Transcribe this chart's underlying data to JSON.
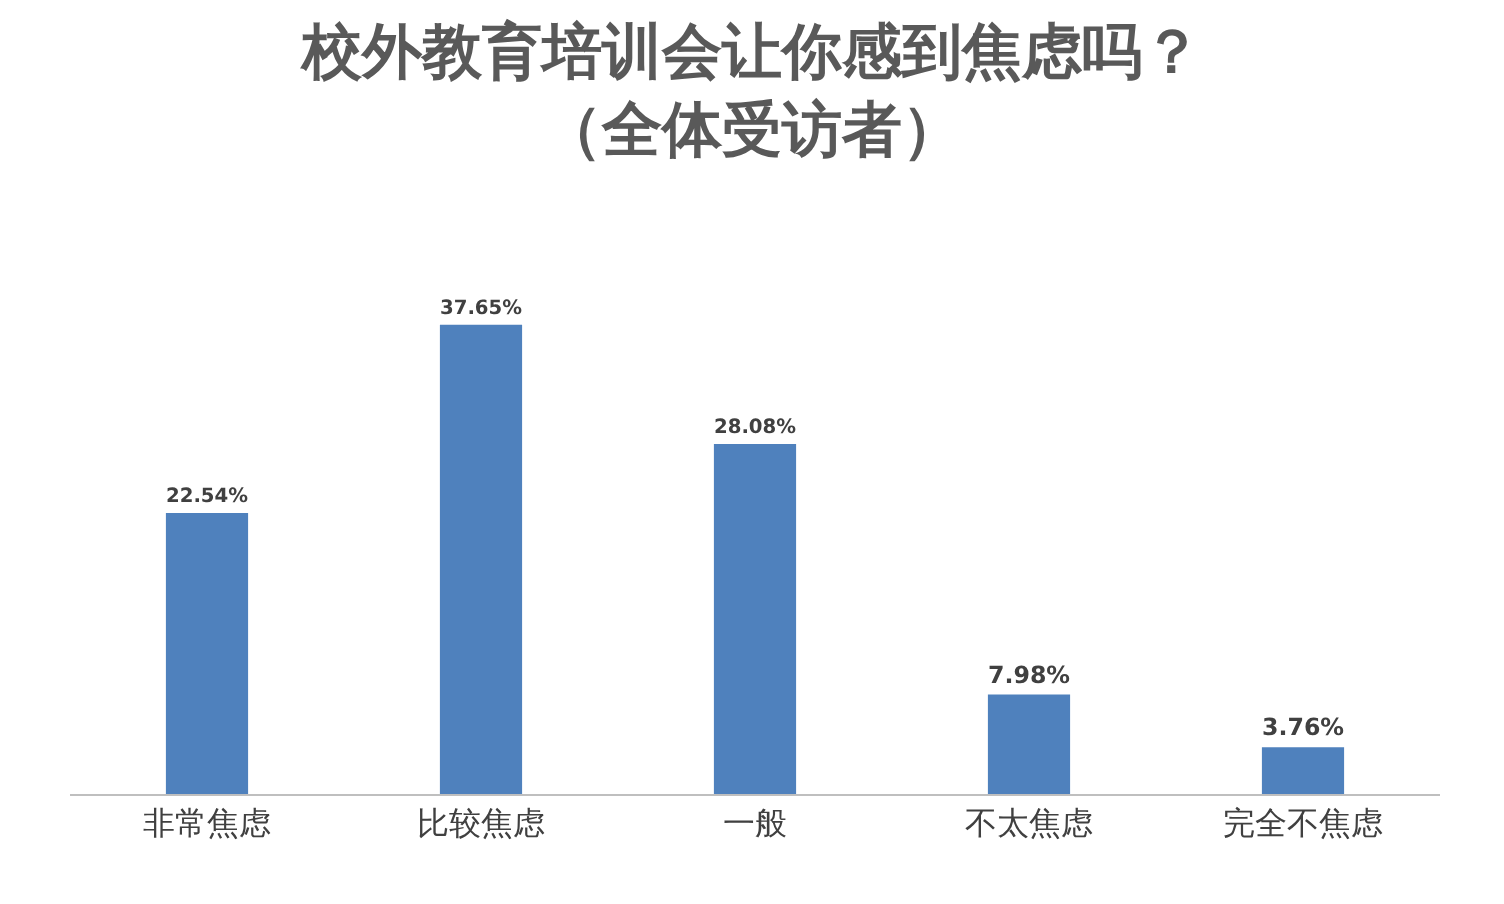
{
  "chart_data": {
    "type": "bar",
    "title": "校外教育培训会让你感到焦虑吗？",
    "subtitle": "（全体受访者）",
    "categories": [
      "非常焦虑",
      "比较焦虑",
      "一般",
      "不太焦虑",
      "完全不焦虑"
    ],
    "values": [
      22.54,
      37.65,
      28.08,
      7.98,
      3.76
    ],
    "value_labels": [
      "22.54%",
      "37.65%",
      "28.08%",
      "7.98%",
      "3.76%"
    ],
    "color": "#4f81bd"
  }
}
